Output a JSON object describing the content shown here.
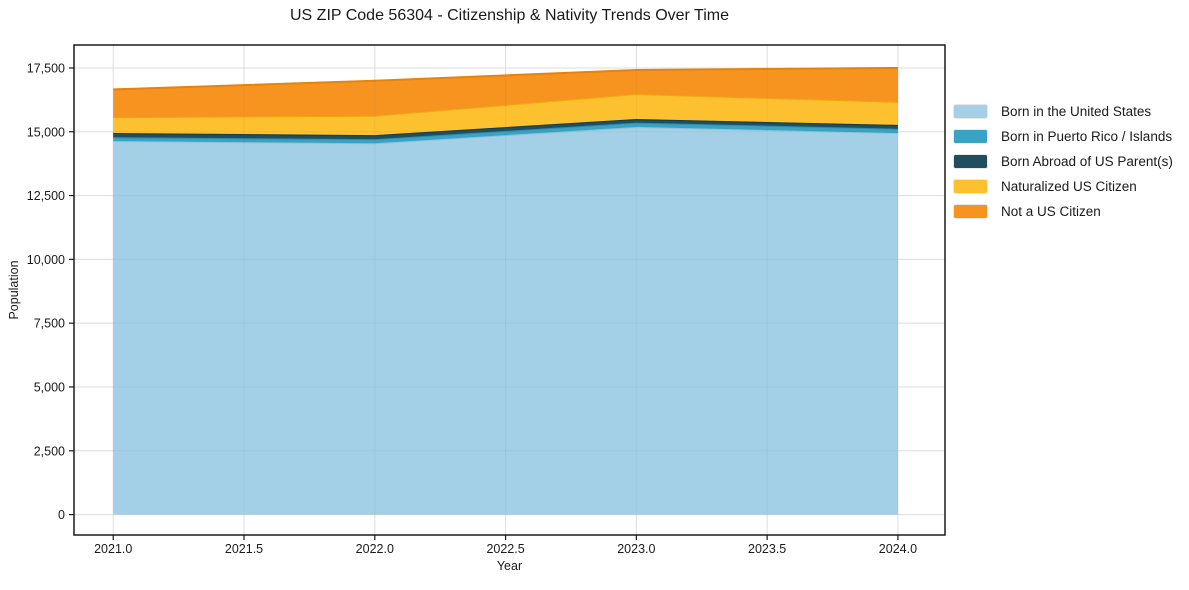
{
  "chart_data": {
    "type": "area",
    "stacked": true,
    "title": "US ZIP Code 56304 - Citizenship & Nativity Trends Over Time",
    "xlabel": "Year",
    "ylabel": "Population",
    "x": [
      2021,
      2022,
      2023,
      2024
    ],
    "series": [
      {
        "name": "Born in the United States",
        "color": "#a3d0e6",
        "edge_color": "#8cc1db",
        "values": [
          14640,
          14550,
          15190,
          14950
        ]
      },
      {
        "name": "Born in Puerto Rico / Islands",
        "color": "#3aa2c2",
        "edge_color": "#2d8cab",
        "values": [
          150,
          160,
          170,
          170
        ]
      },
      {
        "name": "Born Abroad of US Parent(s)",
        "color": "#1f4e5f",
        "edge_color": "#153c4a",
        "values": [
          160,
          160,
          140,
          150
        ]
      },
      {
        "name": "Naturalized US Citizen",
        "color": "#fdc12f",
        "edge_color": "#eda813",
        "values": [
          620,
          760,
          980,
          900
        ]
      },
      {
        "name": "Not a US Citizen",
        "color": "#f79420",
        "edge_color": "#e6830d",
        "values": [
          1090,
          1370,
          940,
          1330
        ]
      }
    ],
    "totals": [
      16660,
      17000,
      17420,
      17500
    ],
    "xlim": [
      2020.85,
      2024.18
    ],
    "ylim": [
      -800,
      18400
    ],
    "xticks": {
      "values": [
        2021,
        2021.5,
        2022,
        2022.5,
        2023,
        2023.5,
        2024
      ],
      "labels": [
        "2021.0",
        "2021.5",
        "2022.0",
        "2022.5",
        "2023.0",
        "2023.5",
        "2024.0"
      ]
    },
    "yticks": {
      "values": [
        0,
        2500,
        5000,
        7500,
        10000,
        12500,
        15000,
        17500
      ],
      "labels": [
        "0",
        "2,500",
        "5,000",
        "7,500",
        "10,000",
        "12,500",
        "15,000",
        "17,500"
      ]
    },
    "grid": true,
    "grid_color": "#e8e8e8",
    "spine_color": "#1a1a1a",
    "tick_label_color": "#1a1a1a",
    "legend_position": "right-outside"
  }
}
